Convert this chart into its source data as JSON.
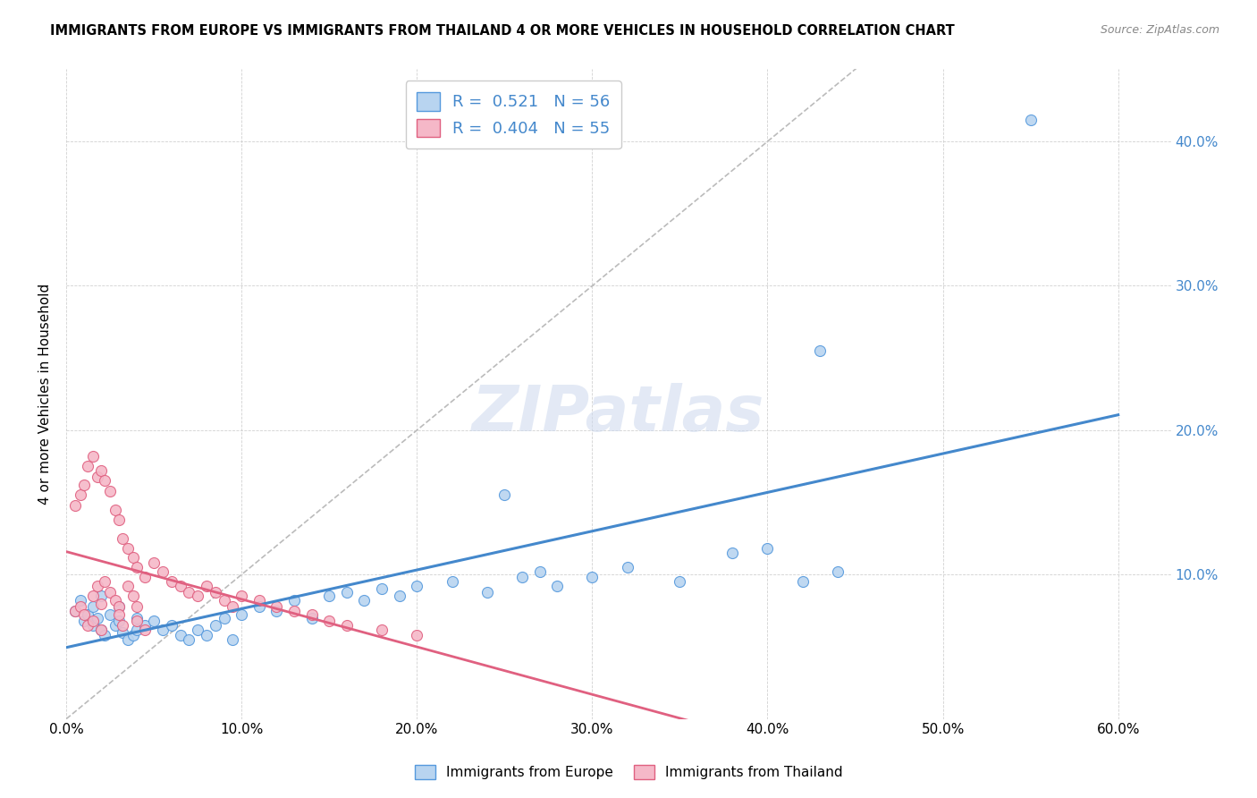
{
  "title": "IMMIGRANTS FROM EUROPE VS IMMIGRANTS FROM THAILAND 4 OR MORE VEHICLES IN HOUSEHOLD CORRELATION CHART",
  "source": "Source: ZipAtlas.com",
  "ylabel": "4 or more Vehicles in Household",
  "yticks": [
    0.0,
    0.1,
    0.2,
    0.3,
    0.4
  ],
  "ytick_labels": [
    "",
    "10.0%",
    "20.0%",
    "30.0%",
    "40.0%"
  ],
  "xticks": [
    0.0,
    0.1,
    0.2,
    0.3,
    0.4,
    0.5,
    0.6
  ],
  "xtick_labels": [
    "0.0%",
    "10.0%",
    "20.0%",
    "30.0%",
    "40.0%",
    "50.0%",
    "60.0%"
  ],
  "xlim": [
    0.0,
    0.63
  ],
  "ylim": [
    0.0,
    0.45
  ],
  "legend_europe_r": "0.521",
  "legend_europe_n": "56",
  "legend_thailand_r": "0.404",
  "legend_thailand_n": "55",
  "legend_label_europe": "Immigrants from Europe",
  "legend_label_thailand": "Immigrants from Thailand",
  "color_europe_fill": "#b8d4f0",
  "color_europe_edge": "#5599dd",
  "color_europe_line": "#4488cc",
  "color_thailand_fill": "#f5b8c8",
  "color_thailand_edge": "#e06080",
  "color_thailand_line": "#e06080",
  "color_diagonal": "#bbbbbb",
  "watermark": "ZIPatlas",
  "europe_x": [
    0.005,
    0.008,
    0.01,
    0.012,
    0.015,
    0.015,
    0.018,
    0.02,
    0.02,
    0.022,
    0.025,
    0.028,
    0.03,
    0.03,
    0.032,
    0.035,
    0.038,
    0.04,
    0.04,
    0.045,
    0.05,
    0.055,
    0.06,
    0.065,
    0.07,
    0.075,
    0.08,
    0.085,
    0.09,
    0.095,
    0.1,
    0.11,
    0.12,
    0.13,
    0.14,
    0.15,
    0.16,
    0.17,
    0.18,
    0.19,
    0.2,
    0.22,
    0.24,
    0.25,
    0.26,
    0.27,
    0.28,
    0.3,
    0.32,
    0.35,
    0.38,
    0.4,
    0.42,
    0.44,
    0.55,
    0.43
  ],
  "europe_y": [
    0.075,
    0.082,
    0.068,
    0.072,
    0.065,
    0.078,
    0.07,
    0.062,
    0.085,
    0.058,
    0.072,
    0.065,
    0.068,
    0.078,
    0.06,
    0.055,
    0.058,
    0.062,
    0.07,
    0.065,
    0.068,
    0.062,
    0.065,
    0.058,
    0.055,
    0.062,
    0.058,
    0.065,
    0.07,
    0.055,
    0.072,
    0.078,
    0.075,
    0.082,
    0.07,
    0.085,
    0.088,
    0.082,
    0.09,
    0.085,
    0.092,
    0.095,
    0.088,
    0.155,
    0.098,
    0.102,
    0.092,
    0.098,
    0.105,
    0.095,
    0.115,
    0.118,
    0.095,
    0.102,
    0.415,
    0.255
  ],
  "thailand_x": [
    0.005,
    0.008,
    0.01,
    0.012,
    0.015,
    0.015,
    0.018,
    0.02,
    0.02,
    0.022,
    0.025,
    0.028,
    0.03,
    0.03,
    0.032,
    0.035,
    0.038,
    0.04,
    0.04,
    0.045,
    0.005,
    0.008,
    0.01,
    0.012,
    0.015,
    0.018,
    0.02,
    0.022,
    0.025,
    0.028,
    0.03,
    0.032,
    0.035,
    0.038,
    0.04,
    0.045,
    0.05,
    0.055,
    0.06,
    0.065,
    0.07,
    0.075,
    0.08,
    0.085,
    0.09,
    0.095,
    0.1,
    0.11,
    0.12,
    0.13,
    0.14,
    0.15,
    0.16,
    0.18,
    0.2
  ],
  "thailand_y": [
    0.075,
    0.078,
    0.072,
    0.065,
    0.068,
    0.085,
    0.092,
    0.08,
    0.062,
    0.095,
    0.088,
    0.082,
    0.078,
    0.072,
    0.065,
    0.092,
    0.085,
    0.068,
    0.078,
    0.062,
    0.148,
    0.155,
    0.162,
    0.175,
    0.182,
    0.168,
    0.172,
    0.165,
    0.158,
    0.145,
    0.138,
    0.125,
    0.118,
    0.112,
    0.105,
    0.098,
    0.108,
    0.102,
    0.095,
    0.092,
    0.088,
    0.085,
    0.092,
    0.088,
    0.082,
    0.078,
    0.085,
    0.082,
    0.078,
    0.075,
    0.072,
    0.068,
    0.065,
    0.062,
    0.058
  ]
}
